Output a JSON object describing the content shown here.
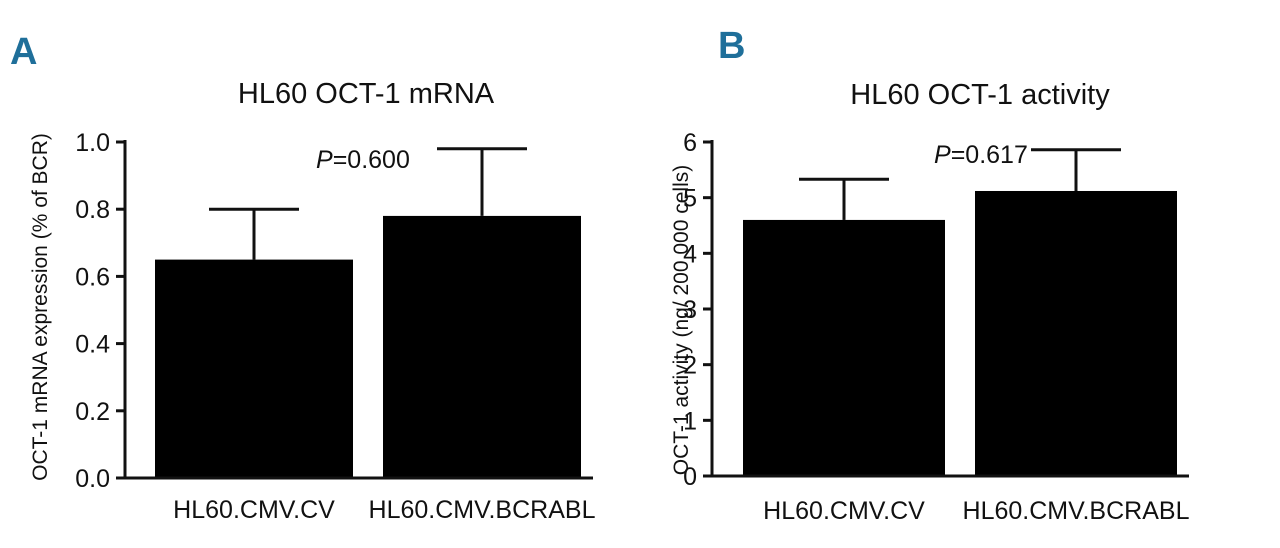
{
  "chart_data": [
    {
      "panel": "A",
      "type": "bar",
      "title": "HL60 OCT-1 mRNA",
      "xlabel": "",
      "ylabel": "OCT-1 mRNA expression (% of BCR)",
      "categories": [
        "HL60.CMV.CV",
        "HL60.CMV.BCRABL"
      ],
      "values": [
        0.65,
        0.78
      ],
      "error_upper": [
        0.8,
        0.98
      ],
      "ylim": [
        0.0,
        1.0
      ],
      "yticks": [
        "0.0",
        "0.2",
        "0.4",
        "0.6",
        "0.8",
        "1.0"
      ],
      "p_label": "P",
      "p_value": "=0.600",
      "bar_color": "#000000"
    },
    {
      "panel": "B",
      "type": "bar",
      "title": "HL60 OCT-1 activity",
      "xlabel": "",
      "ylabel": "OCT-1 activity (ng/ 200 000 cells)",
      "categories": [
        "HL60.CMV.CV",
        "HL60.CMV.BCRABL"
      ],
      "values": [
        4.6,
        5.12
      ],
      "error_upper": [
        5.33,
        5.86
      ],
      "ylim": [
        0,
        6
      ],
      "yticks": [
        "0",
        "1",
        "2",
        "3",
        "4",
        "5",
        "6"
      ],
      "p_label": "P",
      "p_value": "=0.617",
      "bar_color": "#000000"
    }
  ],
  "accent_color": "#1f6f9a"
}
